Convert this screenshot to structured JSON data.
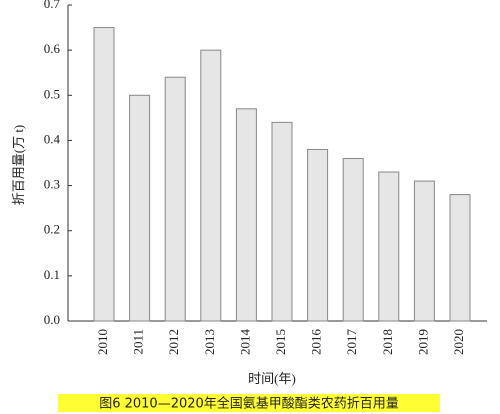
{
  "chart_data": {
    "type": "bar",
    "caption": "图6  2010—2020年全国氨基甲酸酯类农药折百用量",
    "x_label": "时间(年)",
    "y_label": "折百用量(万 t)",
    "categories": [
      "2010",
      "2011",
      "2012",
      "2013",
      "2014",
      "2015",
      "2016",
      "2017",
      "2018",
      "2019",
      "2020"
    ],
    "values": [
      0.65,
      0.5,
      0.54,
      0.6,
      0.47,
      0.44,
      0.38,
      0.36,
      0.33,
      0.31,
      0.28
    ],
    "color": "#e6e6e6",
    "ylim": [
      0,
      0.7
    ],
    "yticks": [
      {
        "value": 0,
        "label": "0.0"
      },
      0.1,
      0.2,
      0.3,
      0.4,
      0.5,
      0.6,
      0.7
    ],
    "grid": false
  }
}
